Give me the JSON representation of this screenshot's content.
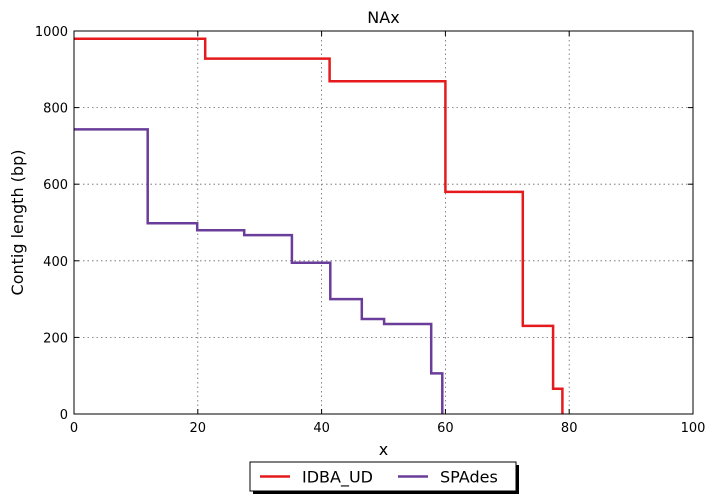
{
  "chart_data": {
    "type": "line",
    "title": "NAx",
    "xlabel": "x",
    "ylabel": "Contig length  (bp)",
    "xlim": [
      0,
      100
    ],
    "ylim": [
      0,
      1000
    ],
    "xticks": [
      "0",
      "20",
      "40",
      "60",
      "80",
      "100"
    ],
    "yticks": [
      "0",
      "200",
      "400",
      "600",
      "800",
      "1000"
    ],
    "grid": true,
    "legend_position": "bottom-center",
    "step": true,
    "series": [
      {
        "name": "IDBA_UD",
        "color": "#e41a1c",
        "x": [
          0,
          21.2,
          21.2,
          41.3,
          41.3,
          60.0,
          60.0,
          72.5,
          72.5,
          77.4,
          77.4,
          78.9,
          78.9
        ],
        "y": [
          980,
          980,
          928,
          928,
          869,
          869,
          580,
          580,
          230,
          230,
          66,
          66,
          0
        ]
      },
      {
        "name": "SPAdes",
        "color": "#6a3d9a",
        "x": [
          0,
          11.9,
          11.9,
          19.9,
          19.9,
          27.5,
          27.5,
          35.2,
          35.2,
          41.4,
          41.4,
          46.5,
          46.5,
          50.1,
          50.1,
          57.7,
          57.7,
          59.5,
          59.5
        ],
        "y": [
          743,
          743,
          498,
          498,
          480,
          480,
          467,
          467,
          395,
          395,
          300,
          300,
          248,
          248,
          235,
          235,
          106,
          106,
          0
        ]
      }
    ]
  }
}
